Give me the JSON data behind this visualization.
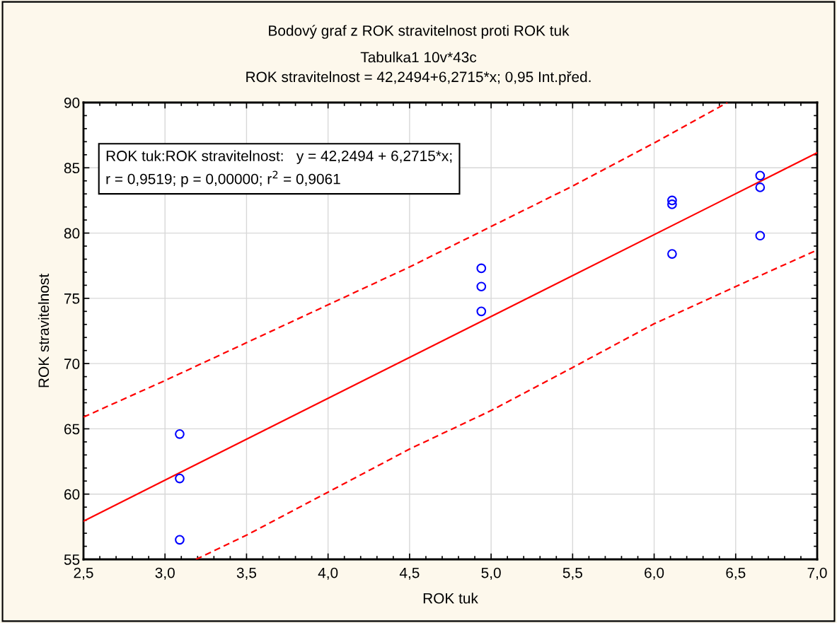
{
  "chart_data": {
    "type": "scatter",
    "title": "Bodový graf z ROK stravitelnost proti ROK tuk",
    "subtitle": "Tabulka1 10v*43c\nROK stravitelnost = 42,2494+6,2715*x; 0,95 Int.před.",
    "xlabel": "ROK tuk",
    "ylabel": "ROK stravitelnost",
    "annotations": [
      "ROK tuk:ROK stravitelnost:   y = 42,2494 + 6,2715*x;\nr = 0,9519; p = 0,00000; r$^{2}$ = 0,9061"
    ],
    "xlim": [
      2.5,
      7.0
    ],
    "ylim": [
      55,
      90
    ],
    "xticks": [
      {
        "value": 2.5,
        "label": "2,5"
      },
      {
        "value": 3.0,
        "label": "3,0"
      },
      {
        "value": 3.5,
        "label": "3,5"
      },
      {
        "value": 4.0,
        "label": "4,0"
      },
      {
        "value": 4.5,
        "label": "4,5"
      },
      {
        "value": 5.0,
        "label": "5,0"
      },
      {
        "value": 5.5,
        "label": "5,5"
      },
      {
        "value": 6.0,
        "label": "6,0"
      },
      {
        "value": 6.5,
        "label": "6,5"
      },
      {
        "value": 7.0,
        "label": "7,0"
      }
    ],
    "yticks": [
      55,
      60,
      65,
      70,
      75,
      80,
      85,
      90
    ],
    "grid": true,
    "legend": false,
    "series": [
      {
        "color": "#0000ff",
        "marker": "circle",
        "x": [
          3.09,
          3.09,
          3.09,
          4.94,
          4.94,
          4.94,
          6.11,
          6.11,
          6.11,
          6.65,
          6.65,
          6.65
        ],
        "values": [
          64.6,
          61.2,
          56.5,
          77.3,
          75.9,
          74.0,
          82.5,
          82.2,
          78.4,
          84.4,
          83.5,
          79.8
        ]
      },
      {
        "type": "line",
        "color": "#ff0000",
        "line_style": "solid",
        "x": [
          2.5,
          7.0
        ],
        "values": [
          57.93,
          86.15
        ]
      },
      {
        "type": "line",
        "color": "#ff0000",
        "line_style": "dashed",
        "x": [
          2.5,
          3.0,
          3.5,
          4.0,
          4.5,
          5.0,
          5.5,
          6.0,
          6.45
        ],
        "values": [
          65.9,
          68.7,
          71.6,
          74.5,
          77.4,
          80.5,
          83.6,
          86.9,
          90.0
        ]
      },
      {
        "type": "line",
        "color": "#ff0000",
        "line_style": "dashed",
        "x": [
          3.19,
          3.5,
          4.0,
          4.5,
          5.0,
          5.5,
          6.0,
          6.5,
          7.0
        ],
        "values": [
          55.0,
          56.85,
          60.15,
          63.45,
          66.4,
          69.7,
          73.05,
          75.9,
          78.7
        ]
      }
    ]
  }
}
